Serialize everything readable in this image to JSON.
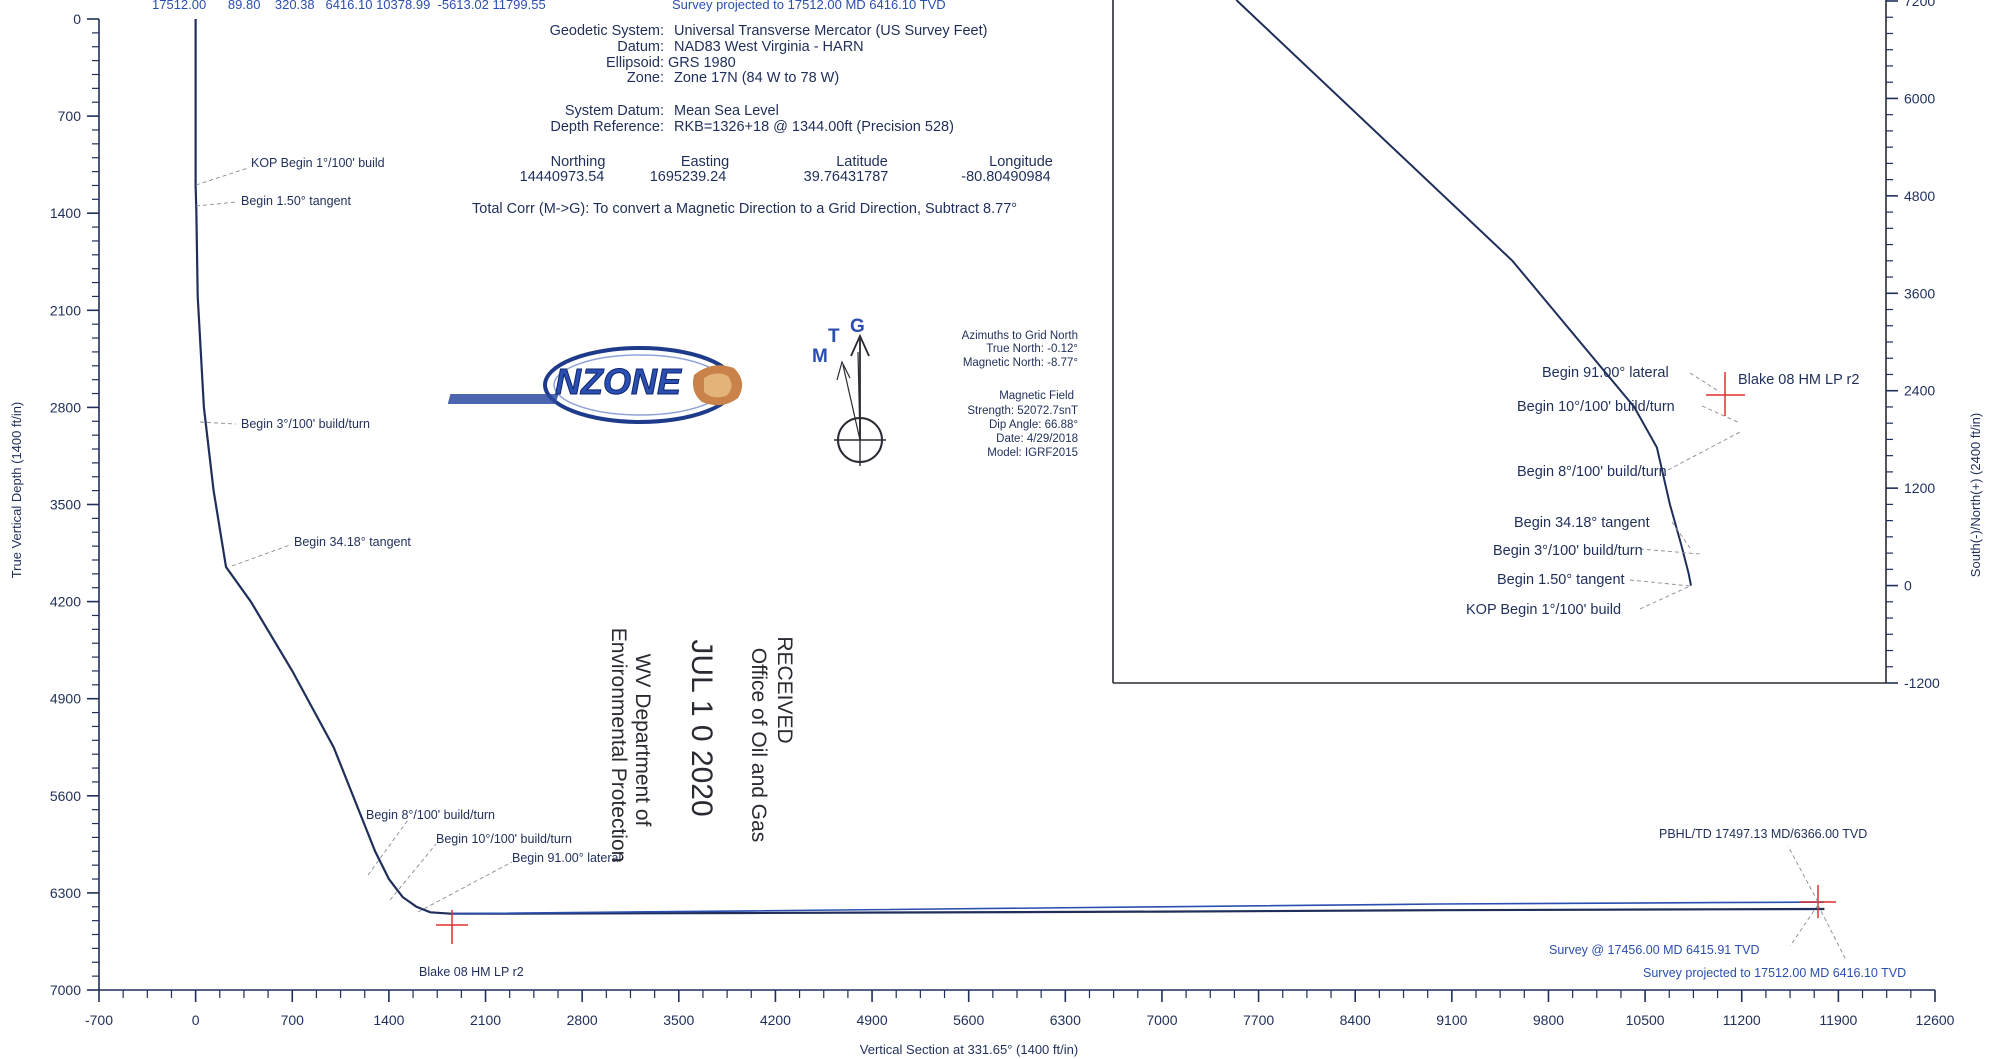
{
  "header": {
    "top_row_values": "17512.00      89.80    320.38   6416.10 10378.99  -5613.02 11799.55",
    "top_row_note": "Survey projected to 17512.00 MD 6416.10 TVD"
  },
  "geodetic": {
    "system_label": "Geodetic System:",
    "system_value": "Universal Transverse Mercator (US Survey Feet)",
    "datum_label": "Datum:",
    "datum_value": "NAD83 West Virginia - HARN",
    "ellipsoid_label": "Ellipsoid:",
    "ellipsoid_value": "GRS 1980",
    "zone_label": "Zone:",
    "zone_value": "Zone 17N (84 W to 78 W)",
    "sys_datum_label": "System Datum:",
    "sys_datum_value": "Mean Sea Level",
    "depth_ref_label": "Depth Reference:",
    "depth_ref_value": "RKB=1326+18 @ 1344.00ft (Precision 528)",
    "northing_label": "Northing",
    "northing_value": "14440973.54",
    "easting_label": "Easting",
    "easting_value": "1695239.24",
    "latitude_label": "Latitude",
    "latitude_value": "39.76431787",
    "longitude_label": "Longitude",
    "longitude_value": "-80.80490984",
    "total_corr": "Total Corr (M->G): To convert a Magnetic Direction to a Grid Direction, Subtract 8.77°"
  },
  "north_arrow": {
    "m": "M",
    "t": "T",
    "g": "G"
  },
  "azimuths": {
    "line1": "Azimuths to Grid North",
    "line2": "True North: -0.12°",
    "line3": "Magnetic North: -8.77°",
    "line4": "Magnetic Field",
    "line5": "Strength: 52072.7snT",
    "line6": "Dip Angle: 66.88°",
    "line7": "Date: 4/29/2018",
    "line8": "Model: IGRF2015"
  },
  "stamp": {
    "line1": "RECEIVED",
    "line2": "Office of Oil and Gas",
    "line3": "JUL 1 0 2020",
    "line4": "WV Department of",
    "line5": "Environmental Protection"
  },
  "logo": {
    "text": "NZONE"
  },
  "main_annotations": {
    "kop": "KOP Begin 1°/100' build",
    "begin150": "Begin 1.50° tangent",
    "begin3": "Begin 3°/100' build/turn",
    "begin3418": "Begin 34.18° tangent",
    "begin8": "Begin 8°/100' build/turn",
    "begin10": "Begin 10°/100' build/turn",
    "begin91": "Begin 91.00° lateral",
    "blake": "Blake 08 HM LP r2",
    "pbhl": "PBHL/TD 17497.13 MD/6366.00 TVD",
    "survey_at": "Survey @ 17456.00 MD 6415.91 TVD",
    "survey_proj": "Survey projected to 17512.00 MD 6416.10 TVD"
  },
  "inset_annotations": {
    "begin91": "Begin 91.00° lateral",
    "blake": "Blake 08 HM LP r2",
    "begin10": "Begin 10°/100' build/turn",
    "begin8": "Begin 8°/100' build/turn",
    "begin3418": "Begin 34.18° tangent",
    "begin3": "Begin 3°/100' build/turn",
    "begin150": "Begin 1.50° tangent",
    "kop": "KOP Begin 1°/100' build"
  },
  "chart_data": [
    {
      "type": "line",
      "xlabel": "Vertical Section at 331.65° (1400 ft/in)",
      "ylabel": "True Vertical Depth (1400 ft/in)",
      "xlim": [
        -700,
        12600
      ],
      "ylim": [
        7000,
        0
      ],
      "x_ticks": [
        -700,
        0,
        700,
        1400,
        2100,
        2800,
        3500,
        4200,
        4900,
        5600,
        6300,
        7000,
        7700,
        8400,
        9100,
        9800,
        10500,
        11200,
        11900,
        12600
      ],
      "y_ticks": [
        0,
        700,
        1400,
        2100,
        2800,
        3500,
        4200,
        4900,
        5600,
        6300,
        7000
      ],
      "series": [
        {
          "x": [
            0,
            0,
            0,
            5,
            15,
            60,
            130,
            220,
            400,
            700,
            1000,
            1200,
            1300,
            1400,
            1500,
            1600,
            1700,
            1850,
            2100,
            4000,
            7000,
            9000,
            11000,
            11799
          ],
          "y": [
            0,
            1000,
            1200,
            1370,
            2000,
            2800,
            3400,
            3950,
            4200,
            4700,
            5250,
            5750,
            6000,
            6200,
            6330,
            6400,
            6440,
            6450,
            6450,
            6445,
            6435,
            6425,
            6418,
            6416
          ]
        },
        {
          "x": [
            1850,
            4000,
            7000,
            9000,
            11000,
            11799
          ],
          "y": [
            6450,
            6430,
            6400,
            6380,
            6370,
            6366
          ]
        }
      ]
    },
    {
      "type": "line",
      "ylabel": "South(-)/North(+) (2400 ft/in)",
      "ylim": [
        -1200,
        7200
      ],
      "y_ticks": [
        -1200,
        0,
        1200,
        2400,
        3600,
        4800,
        6000,
        7200
      ],
      "series": [
        {
          "x": [
            0,
            -30,
            -120,
            -260,
            -420,
            -700,
            -2200,
            -5600
          ],
          "y": [
            0,
            150,
            500,
            1000,
            1700,
            2200,
            4000,
            7600
          ]
        }
      ]
    }
  ]
}
